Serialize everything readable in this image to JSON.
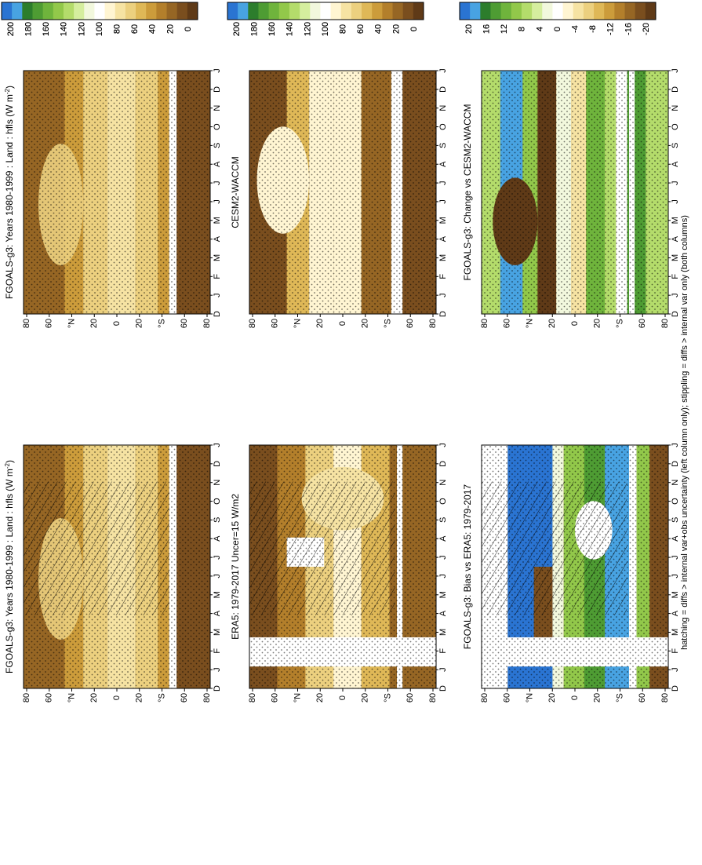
{
  "footnote": "hatching = diffs > internal var+obs uncertainty (left column only); stippling = diffs > internal var only (both columns)",
  "months": [
    "D",
    "J",
    "F",
    "M",
    "A",
    "M",
    "J",
    "J",
    "A",
    "S",
    "O",
    "N",
    "D",
    "J"
  ],
  "lat_labels": [
    "80",
    "60",
    "°N",
    "20",
    "0",
    "20",
    "°S",
    "60",
    "80"
  ],
  "palettes": {
    "abs": [
      "#2a74d2",
      "#48a3e2",
      "#2c7d2c",
      "#4e9c33",
      "#6fb43c",
      "#92c84a",
      "#b4dc6b",
      "#d5ee9e",
      "#f2f8dd",
      "#ffffff",
      "#fff5d2",
      "#f6e3a3",
      "#ecd07f",
      "#dfb857",
      "#cc9c3b",
      "#b37f2b",
      "#966624",
      "#7a4e1e",
      "#5f3a17"
    ],
    "diff": [
      "#2a74d2",
      "#48a3e2",
      "#2c7d2c",
      "#4e9c33",
      "#6fb43c",
      "#92c84a",
      "#b4dc6b",
      "#d5ee9e",
      "#f2f8dd",
      "#ffffff",
      "#fff5d2",
      "#f6e3a3",
      "#ecd07f",
      "#dfb857",
      "#cc9c3b",
      "#b37f2b",
      "#966624",
      "#7a4e1e",
      "#5f3a17"
    ]
  },
  "chart_data": [
    {
      "type": "heatmap",
      "title": "FGOALS-g3: Years 1980-1999 : Land : hfls (W m",
      "title_sup": "-2",
      "title_suffix": ")",
      "colorbar": {
        "labels": [
          "200",
          "180",
          "160",
          "140",
          "120",
          "100",
          "80",
          "60",
          "40",
          "20",
          "0"
        ]
      }
    },
    {
      "type": "heatmap",
      "title": "FGOALS-g3: Years 1980-1999 : Land : hfls (W m",
      "title_sup": "-2",
      "title_suffix": ")",
      "colorbar": {
        "labels": [
          "200",
          "180",
          "160",
          "140",
          "120",
          "100",
          "80",
          "60",
          "40",
          "20",
          "0"
        ]
      }
    },
    {
      "type": "heatmap",
      "title": "ERA5: 1979-2017 Uncer=15 W/m2",
      "colorbar": {
        "labels": [
          "200",
          "180",
          "160",
          "140",
          "120",
          "100",
          "80",
          "60",
          "40",
          "20",
          "0"
        ]
      }
    },
    {
      "type": "heatmap",
      "title": "CESM2-WACCM",
      "colorbar": {
        "labels": [
          "200",
          "180",
          "160",
          "140",
          "120",
          "100",
          "80",
          "60",
          "40",
          "20",
          "0"
        ]
      }
    },
    {
      "type": "heatmap",
      "title": "FGOALS-g3: Bias vs ERA5: 1979-2017",
      "colorbar": {
        "labels": [
          "20",
          "16",
          "12",
          "8",
          "4",
          "0",
          "-4",
          "-8",
          "-12",
          "-16",
          "-20"
        ]
      }
    },
    {
      "type": "heatmap",
      "title": "FGOALS-g3: Change vs CESM2-WACCM",
      "colorbar": {
        "labels": [
          "20",
          "16",
          "12",
          "8",
          "4",
          "0",
          "-4",
          "-8",
          "-12",
          "-16",
          "-20"
        ]
      }
    }
  ]
}
